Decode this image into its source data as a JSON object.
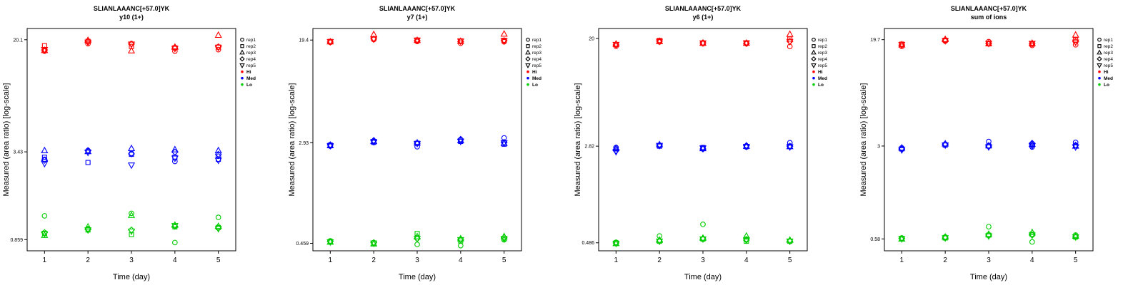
{
  "figure": {
    "peptide": "SLIANLAAANC[+57.0]YK"
  },
  "colors": {
    "Hi": "#FF0000",
    "Med": "#0000FF",
    "Lo": "#00CC00"
  },
  "legend": {
    "reps": [
      {
        "label": "rep1",
        "marker": "circle"
      },
      {
        "label": "rep2",
        "marker": "square"
      },
      {
        "label": "rep3",
        "marker": "triangle-up"
      },
      {
        "label": "rep4",
        "marker": "diamond"
      },
      {
        "label": "rep5",
        "marker": "triangle-down"
      }
    ],
    "levels": [
      {
        "label": "Hi",
        "color": "#FF0000"
      },
      {
        "label": "Med",
        "color": "#0000FF"
      },
      {
        "label": "Lo",
        "color": "#00CC00"
      }
    ]
  },
  "chart_data": [
    {
      "type": "scatter",
      "title": "SLIANLAAANC[+57.0]YK",
      "subtitle": "y10 (1+)",
      "xlabel": "Time (day)",
      "ylabel": "Measured (area ratio) [log-scale]",
      "yscale": "log",
      "x": [
        1,
        2,
        3,
        4,
        5
      ],
      "ylim": [
        0.72,
        24
      ],
      "yticks": [
        {
          "value": 20.1,
          "label": "20.1"
        },
        {
          "value": 3.43,
          "label": "3.43"
        },
        {
          "value": 0.859,
          "label": "0.859"
        }
      ],
      "series": [
        {
          "rep": "rep1",
          "level": "Hi",
          "marker": "circle",
          "values": [
            16.8,
            18.9,
            18.9,
            16.8,
            17.2
          ]
        },
        {
          "rep": "rep2",
          "level": "Hi",
          "marker": "square",
          "values": [
            18.3,
            19.6,
            18.1,
            17.7,
            17.9
          ]
        },
        {
          "rep": "rep3",
          "level": "Hi",
          "marker": "triangle-up",
          "values": [
            17.0,
            19.9,
            16.9,
            17.9,
            21.6
          ]
        },
        {
          "rep": "rep4",
          "level": "Hi",
          "marker": "diamond",
          "values": [
            17.1,
            19.5,
            18.8,
            17.6,
            18.0
          ]
        },
        {
          "rep": "rep5",
          "level": "Hi",
          "marker": "triangle-down",
          "values": [
            17.2,
            19.3,
            18.7,
            17.5,
            17.8
          ]
        },
        {
          "rep": "rep1",
          "level": "Med",
          "marker": "circle",
          "values": [
            3.05,
            3.5,
            3.35,
            2.95,
            3.2
          ]
        },
        {
          "rep": "rep2",
          "level": "Med",
          "marker": "square",
          "values": [
            3.15,
            2.9,
            3.3,
            3.15,
            3.05
          ]
        },
        {
          "rep": "rep3",
          "level": "Med",
          "marker": "triangle-up",
          "values": [
            3.5,
            3.45,
            3.62,
            3.55,
            3.5
          ]
        },
        {
          "rep": "rep4",
          "level": "Med",
          "marker": "diamond",
          "values": [
            3.0,
            3.5,
            3.32,
            3.42,
            3.3
          ]
        },
        {
          "rep": "rep5",
          "level": "Med",
          "marker": "triangle-down",
          "values": [
            2.85,
            3.4,
            2.78,
            3.1,
            3.0
          ]
        },
        {
          "rep": "rep1",
          "level": "Lo",
          "marker": "circle",
          "values": [
            1.25,
            1.02,
            1.3,
            0.82,
            1.22
          ]
        },
        {
          "rep": "rep2",
          "level": "Lo",
          "marker": "square",
          "values": [
            0.95,
            1.0,
            0.93,
            1.05,
            1.04
          ]
        },
        {
          "rep": "rep3",
          "level": "Lo",
          "marker": "triangle-up",
          "values": [
            0.92,
            1.05,
            1.26,
            1.08,
            1.06
          ]
        },
        {
          "rep": "rep4",
          "level": "Lo",
          "marker": "diamond",
          "values": [
            0.96,
            1.01,
            1.0,
            1.06,
            1.03
          ]
        },
        {
          "rep": "rep5",
          "level": "Lo",
          "marker": "triangle-down",
          "values": [
            0.94,
            1.0,
            0.98,
            1.07,
            1.02
          ]
        }
      ]
    },
    {
      "type": "scatter",
      "title": "SLIANLAAANC[+57.0]YK",
      "subtitle": "y7 (1+)",
      "xlabel": "Time (day)",
      "ylabel": "Measured (area ratio) [log-scale]",
      "yscale": "log",
      "x": [
        1,
        2,
        3,
        4,
        5
      ],
      "ylim": [
        0.4,
        24
      ],
      "yticks": [
        {
          "value": 19.4,
          "label": "19.4"
        },
        {
          "value": 2.93,
          "label": "2.93"
        },
        {
          "value": 0.459,
          "label": "0.459"
        }
      ],
      "series": [
        {
          "rep": "rep1",
          "level": "Hi",
          "marker": "circle",
          "values": [
            18.6,
            19.6,
            18.9,
            18.3,
            18.8
          ]
        },
        {
          "rep": "rep2",
          "level": "Hi",
          "marker": "square",
          "values": [
            18.9,
            19.9,
            19.4,
            19.1,
            19.3
          ]
        },
        {
          "rep": "rep3",
          "level": "Hi",
          "marker": "triangle-up",
          "values": [
            18.8,
            21.5,
            19.3,
            19.0,
            21.7
          ]
        },
        {
          "rep": "rep4",
          "level": "Hi",
          "marker": "diamond",
          "values": [
            18.7,
            19.8,
            19.2,
            18.9,
            19.2
          ]
        },
        {
          "rep": "rep5",
          "level": "Hi",
          "marker": "triangle-down",
          "values": [
            18.8,
            19.7,
            19.3,
            19.0,
            19.1
          ]
        },
        {
          "rep": "rep1",
          "level": "Med",
          "marker": "circle",
          "values": [
            2.75,
            2.95,
            2.72,
            3.1,
            3.2
          ]
        },
        {
          "rep": "rep2",
          "level": "Med",
          "marker": "square",
          "values": [
            2.8,
            2.95,
            2.9,
            3.0,
            2.85
          ]
        },
        {
          "rep": "rep3",
          "level": "Med",
          "marker": "triangle-up",
          "values": [
            2.78,
            3.0,
            2.92,
            3.05,
            2.9
          ]
        },
        {
          "rep": "rep4",
          "level": "Med",
          "marker": "diamond",
          "values": [
            2.82,
            3.05,
            2.9,
            3.12,
            2.95
          ]
        },
        {
          "rep": "rep5",
          "level": "Med",
          "marker": "triangle-down",
          "values": [
            2.77,
            2.98,
            2.88,
            3.0,
            2.92
          ]
        },
        {
          "rep": "rep1",
          "level": "Lo",
          "marker": "circle",
          "values": [
            0.48,
            0.465,
            0.45,
            0.44,
            0.49
          ]
        },
        {
          "rep": "rep2",
          "level": "Lo",
          "marker": "square",
          "values": [
            0.475,
            0.46,
            0.55,
            0.48,
            0.5
          ]
        },
        {
          "rep": "rep3",
          "level": "Lo",
          "marker": "triangle-up",
          "values": [
            0.47,
            0.455,
            0.52,
            0.5,
            0.52
          ]
        },
        {
          "rep": "rep4",
          "level": "Lo",
          "marker": "diamond",
          "values": [
            0.475,
            0.465,
            0.5,
            0.49,
            0.51
          ]
        },
        {
          "rep": "rep5",
          "level": "Lo",
          "marker": "triangle-down",
          "values": [
            0.47,
            0.46,
            0.5,
            0.49,
            0.5
          ]
        }
      ]
    },
    {
      "type": "scatter",
      "title": "SLIANLAAANC[+57.0]YK",
      "subtitle": "y6 (1+)",
      "xlabel": "Time (day)",
      "ylabel": "Measured (area ratio) [log-scale]",
      "yscale": "log",
      "x": [
        1,
        2,
        3,
        4,
        5
      ],
      "ylim": [
        0.42,
        24
      ],
      "yticks": [
        {
          "value": 20,
          "label": "20"
        },
        {
          "value": 2.82,
          "label": "2.82"
        },
        {
          "value": 0.486,
          "label": "0.486"
        }
      ],
      "series": [
        {
          "rep": "rep1",
          "level": "Hi",
          "marker": "circle",
          "values": [
            17.4,
            18.8,
            18.5,
            18.2,
            17.3
          ]
        },
        {
          "rep": "rep2",
          "level": "Hi",
          "marker": "square",
          "values": [
            17.9,
            19.3,
            18.3,
            18.5,
            19.8
          ]
        },
        {
          "rep": "rep3",
          "level": "Hi",
          "marker": "triangle-up",
          "values": [
            18.1,
            19.0,
            18.4,
            18.4,
            21.6
          ]
        },
        {
          "rep": "rep4",
          "level": "Hi",
          "marker": "diamond",
          "values": [
            17.8,
            19.1,
            18.5,
            18.3,
            19.0
          ]
        },
        {
          "rep": "rep5",
          "level": "Hi",
          "marker": "triangle-down",
          "values": [
            17.9,
            19.0,
            18.4,
            18.4,
            18.9
          ]
        },
        {
          "rep": "rep1",
          "level": "Med",
          "marker": "circle",
          "values": [
            2.75,
            2.85,
            2.72,
            2.78,
            3.0
          ]
        },
        {
          "rep": "rep2",
          "level": "Med",
          "marker": "square",
          "values": [
            2.68,
            2.82,
            2.75,
            2.8,
            2.82
          ]
        },
        {
          "rep": "rep3",
          "level": "Med",
          "marker": "triangle-up",
          "values": [
            2.72,
            2.9,
            2.7,
            2.82,
            2.8
          ]
        },
        {
          "rep": "rep4",
          "level": "Med",
          "marker": "diamond",
          "values": [
            2.6,
            2.88,
            2.68,
            2.85,
            2.82
          ]
        },
        {
          "rep": "rep5",
          "level": "Med",
          "marker": "triangle-down",
          "values": [
            2.55,
            2.85,
            2.72,
            2.8,
            2.78
          ]
        },
        {
          "rep": "rep1",
          "level": "Lo",
          "marker": "circle",
          "values": [
            0.49,
            0.55,
            0.68,
            0.52,
            0.5
          ]
        },
        {
          "rep": "rep2",
          "level": "Lo",
          "marker": "square",
          "values": [
            0.485,
            0.5,
            0.52,
            0.5,
            0.5
          ]
        },
        {
          "rep": "rep3",
          "level": "Lo",
          "marker": "triangle-up",
          "values": [
            0.48,
            0.51,
            0.53,
            0.55,
            0.51
          ]
        },
        {
          "rep": "rep4",
          "level": "Lo",
          "marker": "diamond",
          "values": [
            0.485,
            0.5,
            0.52,
            0.51,
            0.5
          ]
        },
        {
          "rep": "rep5",
          "level": "Lo",
          "marker": "triangle-down",
          "values": [
            0.48,
            0.5,
            0.52,
            0.51,
            0.5
          ]
        }
      ]
    },
    {
      "type": "scatter",
      "title": "SLIANLAAANC[+57.0]YK",
      "subtitle": "sum of ions",
      "xlabel": "Time (day)",
      "ylabel": "Measured (area ratio) [log-scale]",
      "yscale": "log",
      "x": [
        1,
        2,
        3,
        4,
        5
      ],
      "ylim": [
        0.47,
        24
      ],
      "yticks": [
        {
          "value": 19.7,
          "label": "19.7"
        },
        {
          "value": 3,
          "label": "3"
        },
        {
          "value": 0.58,
          "label": "0.58"
        }
      ],
      "series": [
        {
          "rep": "rep1",
          "level": "Hi",
          "marker": "circle",
          "values": [
            17.5,
            19.2,
            19.0,
            17.8,
            18.0
          ]
        },
        {
          "rep": "rep2",
          "level": "Hi",
          "marker": "square",
          "values": [
            18.2,
            19.5,
            18.3,
            18.2,
            19.6
          ]
        },
        {
          "rep": "rep3",
          "level": "Hi",
          "marker": "triangle-up",
          "values": [
            18.0,
            19.8,
            18.4,
            18.5,
            21.4
          ]
        },
        {
          "rep": "rep4",
          "level": "Hi",
          "marker": "diamond",
          "values": [
            17.9,
            19.4,
            18.4,
            18.3,
            19.0
          ]
        },
        {
          "rep": "rep5",
          "level": "Hi",
          "marker": "triangle-down",
          "values": [
            18.0,
            19.3,
            18.4,
            18.4,
            18.8
          ]
        },
        {
          "rep": "rep1",
          "level": "Med",
          "marker": "circle",
          "values": [
            2.9,
            3.1,
            3.25,
            2.95,
            3.2
          ]
        },
        {
          "rep": "rep2",
          "level": "Med",
          "marker": "square",
          "values": [
            2.85,
            3.05,
            3.0,
            3.05,
            3.0
          ]
        },
        {
          "rep": "rep3",
          "level": "Med",
          "marker": "triangle-up",
          "values": [
            2.9,
            3.12,
            3.02,
            3.1,
            3.0
          ]
        },
        {
          "rep": "rep4",
          "level": "Med",
          "marker": "diamond",
          "values": [
            2.85,
            3.1,
            3.0,
            3.15,
            3.05
          ]
        },
        {
          "rep": "rep5",
          "level": "Med",
          "marker": "triangle-down",
          "values": [
            2.8,
            3.05,
            2.95,
            3.0,
            2.95
          ]
        },
        {
          "rep": "rep1",
          "level": "Lo",
          "marker": "circle",
          "values": [
            0.59,
            0.6,
            0.72,
            0.55,
            0.62
          ]
        },
        {
          "rep": "rep2",
          "level": "Lo",
          "marker": "square",
          "values": [
            0.585,
            0.59,
            0.62,
            0.63,
            0.6
          ]
        },
        {
          "rep": "rep3",
          "level": "Lo",
          "marker": "triangle-up",
          "values": [
            0.58,
            0.6,
            0.63,
            0.65,
            0.61
          ]
        },
        {
          "rep": "rep4",
          "level": "Lo",
          "marker": "diamond",
          "values": [
            0.585,
            0.59,
            0.62,
            0.62,
            0.6
          ]
        },
        {
          "rep": "rep5",
          "level": "Lo",
          "marker": "triangle-down",
          "values": [
            0.58,
            0.59,
            0.61,
            0.62,
            0.6
          ]
        }
      ]
    }
  ]
}
